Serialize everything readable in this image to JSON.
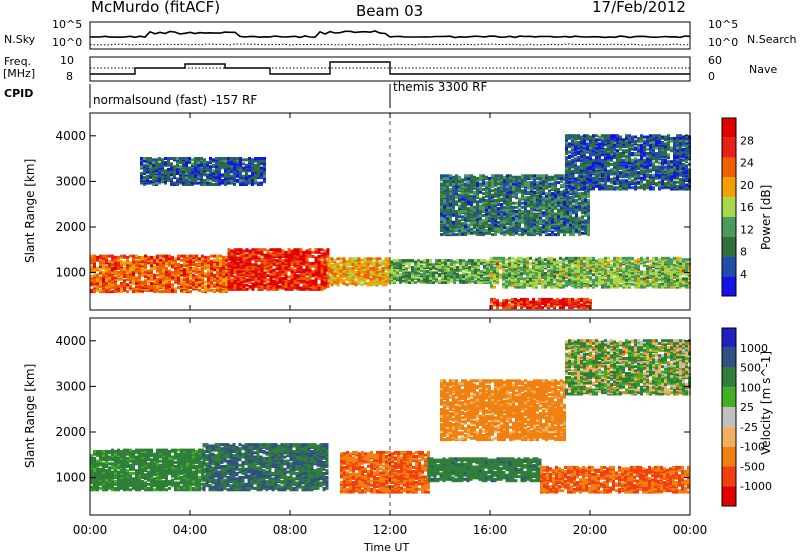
{
  "header": {
    "station": "McMurdo (fitACF)",
    "beam": "Beam 03",
    "date": "17/Feb/2012"
  },
  "left_labels": {
    "nsky": "N.Sky",
    "freq_line1": "Freq.",
    "freq_line2": "[MHz]",
    "cpid": "CPID"
  },
  "right_labels": {
    "nsearch": "N.Search",
    "nave": "Nave"
  },
  "noise_axis": {
    "top": "10^5",
    "bottom": "10^0"
  },
  "freq_axis": {
    "top": "10",
    "bottom": "8"
  },
  "nave_axis": {
    "top": "60",
    "bottom": "0"
  },
  "cpid_segments": [
    {
      "label": "normalsound (fast) -157 RF",
      "start_hour": 0
    },
    {
      "label": "themis 3300 RF",
      "start_hour": 12
    }
  ],
  "time_axis": {
    "label": "Time UT",
    "ticks": [
      "00:00",
      "04:00",
      "08:00",
      "12:00",
      "16:00",
      "20:00",
      "00:00"
    ]
  },
  "colors": {
    "power": [
      "#1414e6",
      "#1f4fa8",
      "#2f6f3a",
      "#4a9a5a",
      "#a8d84a",
      "#f0a000",
      "#f06000",
      "#e82018",
      "#e00000"
    ],
    "velocity": [
      "#e00000",
      "#f04010",
      "#f08010",
      "#f0b060",
      "#c0c0c0",
      "#40b020",
      "#2f7f3a",
      "#305080",
      "#2020c0"
    ]
  },
  "chart_data": [
    {
      "type": "heatmap",
      "panel": "power",
      "ylabel": "Slant Range [km]",
      "y_ticks": [
        1000,
        2000,
        3000,
        4000
      ],
      "ylim": [
        180,
        4500
      ],
      "xlim_hours": [
        0,
        24
      ],
      "colorbar": {
        "label": "Power [dB]",
        "ticks": [
          4,
          8,
          12,
          16,
          20,
          24,
          28
        ]
      },
      "regions": [
        {
          "t0": 0,
          "t1": 5.5,
          "r0": 550,
          "r1": 1350,
          "value": 24
        },
        {
          "t0": 5.5,
          "t1": 9.5,
          "r0": 600,
          "r1": 1500,
          "value": 28
        },
        {
          "t0": 9.5,
          "t1": 12,
          "r0": 700,
          "r1": 1300,
          "value": 20
        },
        {
          "t0": 12,
          "t1": 16,
          "r0": 750,
          "r1": 1250,
          "value": 12
        },
        {
          "t0": 16,
          "t1": 24,
          "r0": 650,
          "r1": 1300,
          "value": 14
        },
        {
          "t0": 16,
          "t1": 20,
          "r0": 200,
          "r1": 400,
          "value": 28
        },
        {
          "t0": 2,
          "t1": 7,
          "r0": 2900,
          "r1": 3500,
          "value": 6
        },
        {
          "t0": 14,
          "t1": 20,
          "r0": 1800,
          "r1": 3100,
          "value": 8
        },
        {
          "t0": 19,
          "t1": 24,
          "r0": 2800,
          "r1": 4000,
          "value": 6
        }
      ]
    },
    {
      "type": "heatmap",
      "panel": "velocity",
      "ylabel": "Slant Range [km]",
      "y_ticks": [
        1000,
        2000,
        3000,
        4000
      ],
      "ylim": [
        180,
        4500
      ],
      "xlim_hours": [
        0,
        24
      ],
      "colorbar": {
        "label": "Velocity [m s^-1]",
        "ticks": [
          1000,
          500,
          100,
          25,
          -25,
          -100,
          -500,
          -1000
        ]
      },
      "regions": [
        {
          "t0": 0,
          "t1": 4.5,
          "r0": 700,
          "r1": 1600,
          "value": 150
        },
        {
          "t0": 4.5,
          "t1": 9.5,
          "r0": 700,
          "r1": 1700,
          "value": 300
        },
        {
          "t0": 10,
          "t1": 13.5,
          "r0": 650,
          "r1": 1550,
          "value": -300
        },
        {
          "t0": 13.5,
          "t1": 18,
          "r0": 900,
          "r1": 1400,
          "value": 200
        },
        {
          "t0": 18,
          "t1": 24,
          "r0": 650,
          "r1": 1200,
          "value": -300
        },
        {
          "t0": 14,
          "t1": 19,
          "r0": 1800,
          "r1": 3100,
          "value": -150
        },
        {
          "t0": 19,
          "t1": 24,
          "r0": 2800,
          "r1": 4000,
          "value": 50
        }
      ]
    }
  ]
}
